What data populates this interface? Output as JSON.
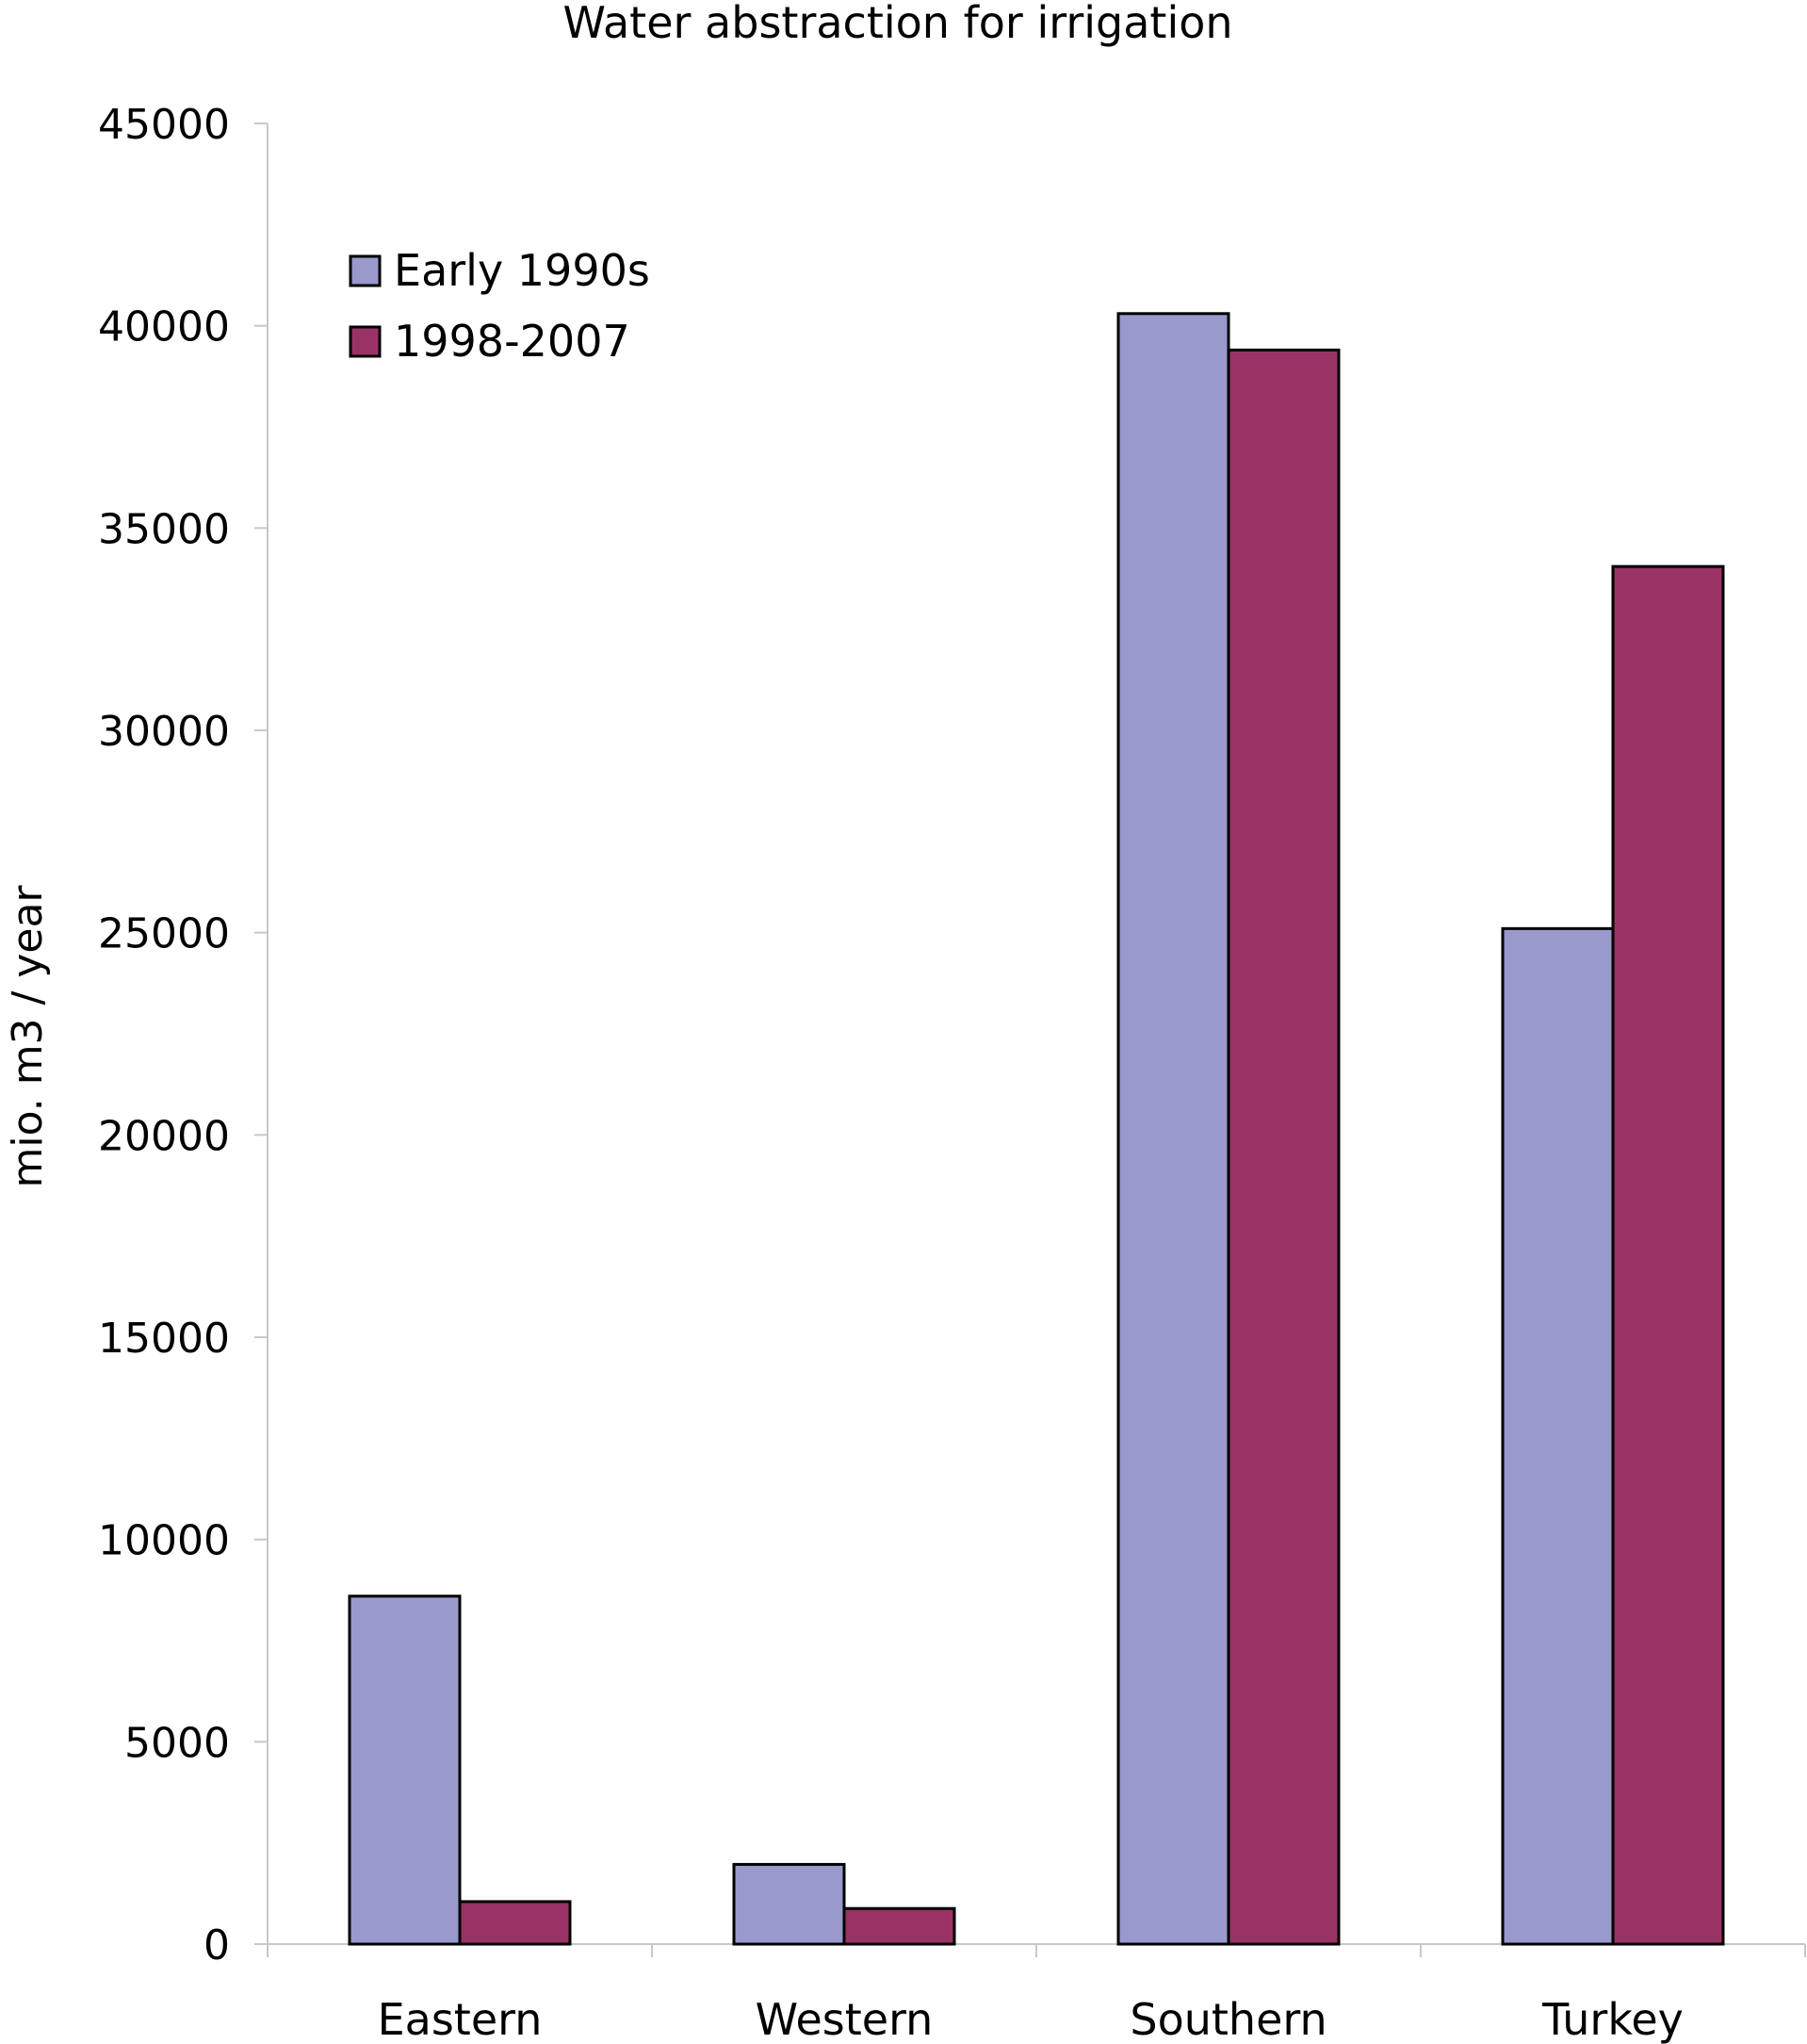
{
  "chart_data": {
    "type": "bar",
    "title": "Water abstraction for irrigation",
    "xlabel": "",
    "ylabel": "mio. m3 / year",
    "ylim": [
      0,
      45000
    ],
    "yticks": [
      0,
      5000,
      10000,
      15000,
      20000,
      25000,
      30000,
      35000,
      40000,
      45000
    ],
    "yticklabels": [
      "0",
      "5000",
      "10000",
      "15000",
      "20000",
      "25000",
      "30000",
      "35000",
      "40000",
      "45000"
    ],
    "categories": [
      "Eastern",
      "Western",
      "Southern",
      "Turkey"
    ],
    "series": [
      {
        "name": "Early 1990s",
        "color": "#9999CC",
        "values": [
          8600,
          1970,
          40300,
          25100
        ]
      },
      {
        "name": "1998-2007",
        "color": "#993366",
        "values": [
          1050,
          880,
          39400,
          34050
        ]
      }
    ],
    "legend_position": "top-left",
    "grid": false
  }
}
